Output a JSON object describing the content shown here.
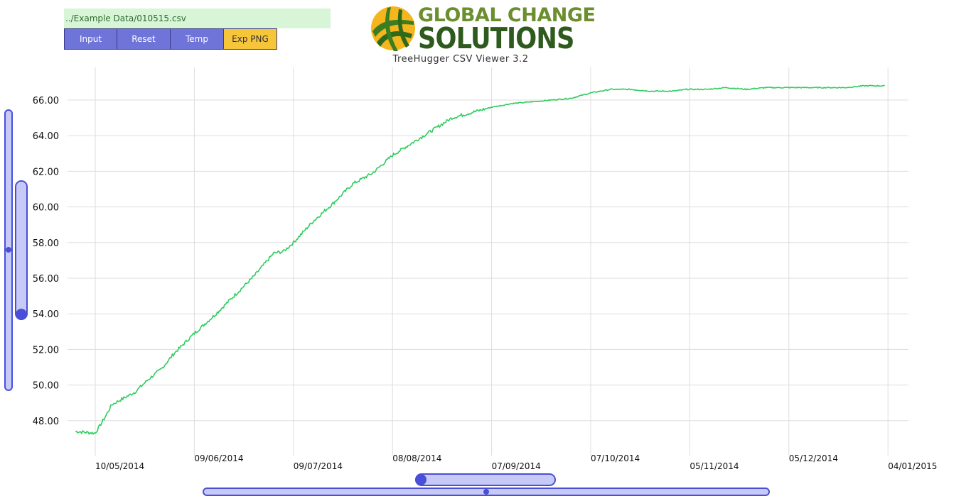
{
  "header": {
    "file_path": "../Example Data/010515.csv",
    "buttons": [
      {
        "label": "Input",
        "name": "input-button"
      },
      {
        "label": "Reset",
        "name": "reset-button"
      },
      {
        "label": "Temp",
        "name": "temp-button"
      },
      {
        "label": "Exp PNG",
        "name": "export-png-button"
      }
    ],
    "logo_line1": "GLOBAL CHANGE",
    "logo_line2": "SOLUTIONS",
    "viewer_title": "TreeHugger CSV Viewer 3.2"
  },
  "colors": {
    "series": "#2ecc5f",
    "grid": "#dddddd",
    "slider_fill": "#c7caf7",
    "slider_border": "#4a4fd8",
    "button": "#6f74d8",
    "export_button": "#f7c53a",
    "file_bar": "#d8f5d8"
  },
  "chart_data": {
    "type": "line",
    "title": "",
    "xlabel": "",
    "ylabel": "",
    "x_tick_labels": [
      "10/05/2014",
      "09/06/2014",
      "09/07/2014",
      "08/08/2014",
      "07/09/2014",
      "07/10/2014",
      "05/11/2014",
      "05/12/2014",
      "04/01/2015"
    ],
    "y_tick_labels": [
      "48.00",
      "50.00",
      "52.00",
      "54.00",
      "56.00",
      "58.00",
      "60.00",
      "62.00",
      "64.00",
      "66.00"
    ],
    "ylim": [
      46.9,
      68.2
    ],
    "xlim": [
      "2014-05-04",
      "2015-01-06"
    ],
    "grid": true,
    "legend": "none",
    "series": [
      {
        "x": [
          "2014-05-04",
          "2014-05-10",
          "2014-05-13",
          "2014-05-15",
          "2014-05-18",
          "2014-05-22",
          "2014-05-26",
          "2014-05-30",
          "2014-06-03",
          "2014-06-09",
          "2014-06-15",
          "2014-06-21",
          "2014-06-27",
          "2014-07-03",
          "2014-07-06",
          "2014-07-09",
          "2014-07-15",
          "2014-07-21",
          "2014-07-27",
          "2014-08-02",
          "2014-08-08",
          "2014-08-14",
          "2014-08-20",
          "2014-08-26",
          "2014-09-01",
          "2014-09-07",
          "2014-09-13",
          "2014-09-19",
          "2014-09-25",
          "2014-10-01",
          "2014-10-07",
          "2014-10-13",
          "2014-10-19",
          "2014-10-25",
          "2014-11-01",
          "2014-11-05",
          "2014-11-11",
          "2014-11-17",
          "2014-11-23",
          "2014-11-29",
          "2014-12-05",
          "2014-12-11",
          "2014-12-17",
          "2014-12-23",
          "2014-12-29",
          "2015-01-04"
        ],
        "y": [
          47.4,
          47.3,
          48.2,
          48.9,
          49.2,
          49.6,
          50.3,
          50.9,
          51.8,
          52.9,
          53.9,
          55.0,
          56.1,
          57.4,
          57.5,
          58.0,
          59.2,
          60.2,
          61.3,
          61.9,
          62.9,
          63.6,
          64.3,
          65.0,
          65.3,
          65.6,
          65.8,
          65.9,
          66.0,
          66.1,
          66.4,
          66.6,
          66.6,
          66.5,
          66.5,
          66.6,
          66.6,
          66.7,
          66.6,
          66.7,
          66.7,
          66.7,
          66.7,
          66.7,
          66.8,
          66.8
        ]
      }
    ]
  }
}
